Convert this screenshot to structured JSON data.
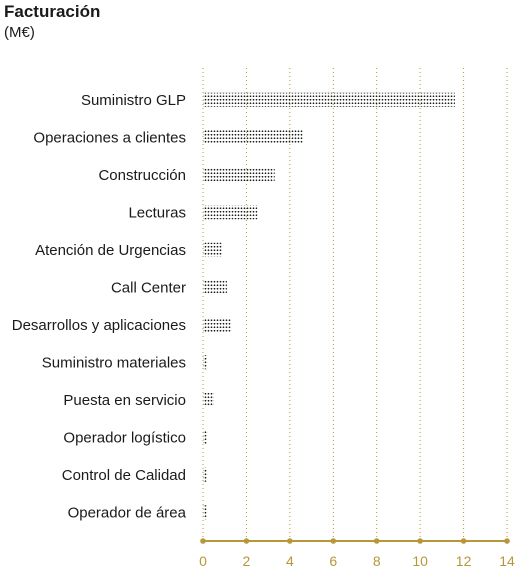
{
  "chart_data": {
    "type": "bar",
    "orientation": "horizontal",
    "title": "Facturación",
    "subtitle": "(M€)",
    "categories": [
      "Suministro GLP",
      "Operaciones a clientes",
      "Construcción",
      "Lecturas",
      "Atención de Urgencias",
      "Call Center",
      "Desarrollos y aplicaciones",
      "Suministro materiales",
      "Puesta en servicio",
      "Operador logístico",
      "Control de Calidad",
      "Operador de área"
    ],
    "values": [
      11.6,
      4.6,
      3.3,
      2.5,
      0.9,
      1.1,
      1.3,
      0.2,
      0.5,
      0.2,
      0.2,
      0.2
    ],
    "xlim": [
      0,
      14
    ],
    "xticks": [
      "0",
      "2",
      "4",
      "6",
      "8",
      "10",
      "12",
      "14"
    ],
    "grid": "vertical dotted",
    "colors": {
      "axis": "#b8973a",
      "bar_dots": "#1a1a1a",
      "text": "#1a1a1a"
    }
  }
}
